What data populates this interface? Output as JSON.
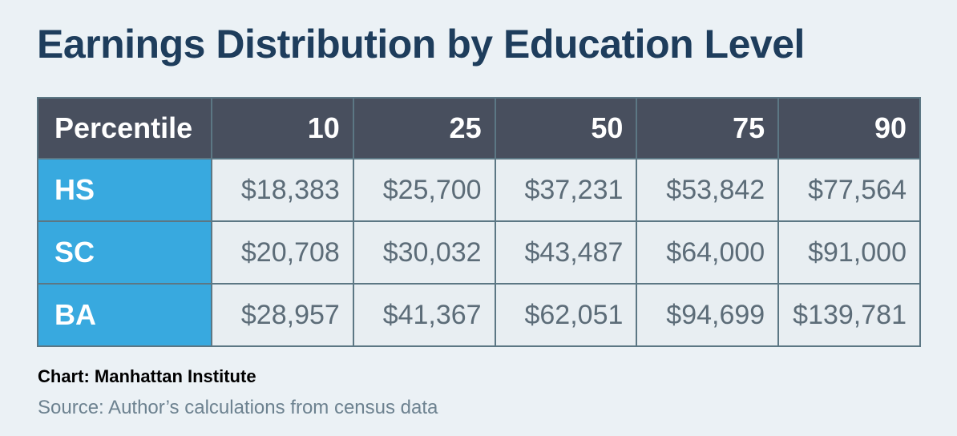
{
  "chart_data": {
    "type": "table",
    "title": "Earnings Distribution by Education Level",
    "columns": [
      "Percentile",
      "10",
      "25",
      "50",
      "75",
      "90"
    ],
    "rows": [
      {
        "label": "HS",
        "values": [
          "$18,383",
          "$25,700",
          "$37,231",
          "$53,842",
          "$77,564"
        ]
      },
      {
        "label": "SC",
        "values": [
          "$20,708",
          "$30,032",
          "$43,487",
          "$64,000",
          "$91,000"
        ]
      },
      {
        "label": "BA",
        "values": [
          "$28,957",
          "$41,367",
          "$62,051",
          "$94,699",
          "$139,781"
        ]
      }
    ],
    "credit": "Chart: Manhattan Institute",
    "source": "Source: Author’s calculations from census data"
  },
  "colors": {
    "background": "#ebf1f5",
    "title": "#1e3d5c",
    "header_fill": "#484f5e",
    "row_label_fill": "#38a9df",
    "cell_fill": "#e8eef2",
    "cell_text": "#5c6c78",
    "border": "#5c7784",
    "source_text": "#6d8290"
  }
}
